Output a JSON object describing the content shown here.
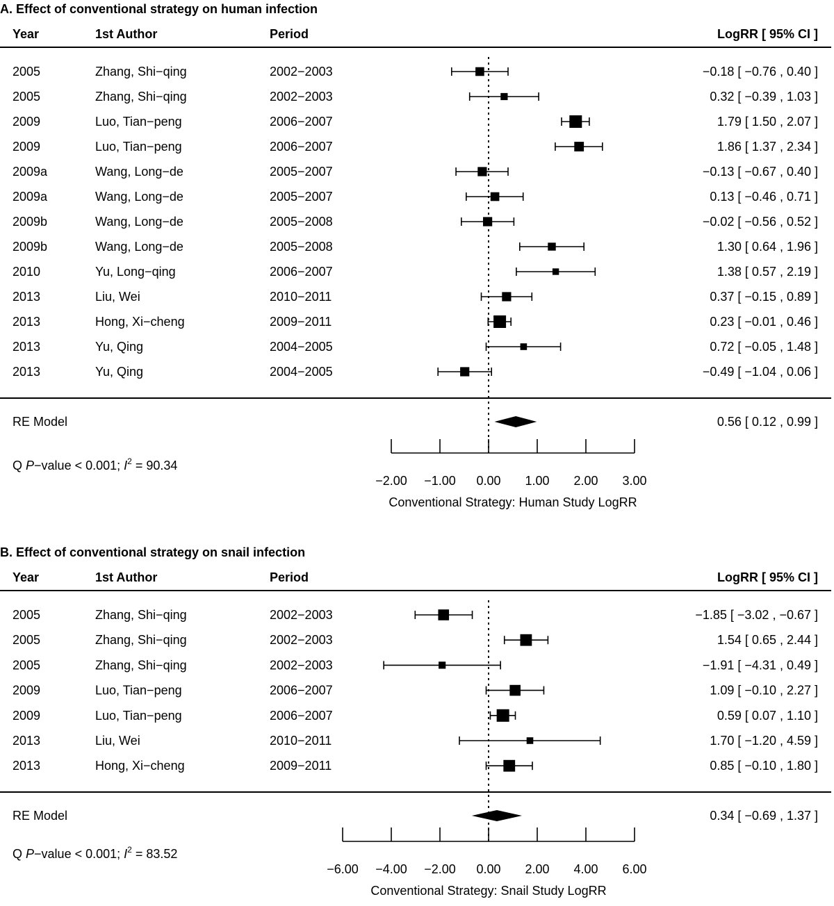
{
  "chart_data": [
    {
      "type": "forest",
      "title": "A. Effect of conventional strategy on human infection",
      "columns": {
        "year": "Year",
        "author": "1st Author",
        "period": "Period",
        "estimate": "LogRR [ 95% CI ]"
      },
      "studies": [
        {
          "year": "2005",
          "author": "Zhang, Shi−qing",
          "period": "2002−2003",
          "est": -0.18,
          "lo": -0.76,
          "hi": 0.4,
          "weight": 0.55,
          "label": "−0.18 [ −0.76 , 0.40 ]"
        },
        {
          "year": "2005",
          "author": "Zhang, Shi−qing",
          "period": "2002−2003",
          "est": 0.32,
          "lo": -0.39,
          "hi": 1.03,
          "weight": 0.35,
          "label": "0.32 [ −0.39 , 1.03 ]"
        },
        {
          "year": "2009",
          "author": "Luo, Tian−peng",
          "period": "2006−2007",
          "est": 1.79,
          "lo": 1.5,
          "hi": 2.07,
          "weight": 1.0,
          "label": "1.79 [  1.50 , 2.07 ]"
        },
        {
          "year": "2009",
          "author": "Luo, Tian−peng",
          "period": "2006−2007",
          "est": 1.86,
          "lo": 1.37,
          "hi": 2.34,
          "weight": 0.65,
          "label": "1.86 [  1.37 , 2.34 ]"
        },
        {
          "year": "2009a",
          "author": "Wang, Long−de",
          "period": "2005−2007",
          "est": -0.13,
          "lo": -0.67,
          "hi": 0.4,
          "weight": 0.6,
          "label": "−0.13 [ −0.67 , 0.40 ]"
        },
        {
          "year": "2009a",
          "author": "Wang, Long−de",
          "period": "2005−2007",
          "est": 0.13,
          "lo": -0.46,
          "hi": 0.71,
          "weight": 0.55,
          "label": "0.13 [ −0.46 , 0.71 ]"
        },
        {
          "year": "2009b",
          "author": "Wang, Long−de",
          "period": "2005−2008",
          "est": -0.02,
          "lo": -0.56,
          "hi": 0.52,
          "weight": 0.6,
          "label": "−0.02 [ −0.56 , 0.52 ]"
        },
        {
          "year": "2009b",
          "author": "Wang, Long−de",
          "period": "2005−2008",
          "est": 1.3,
          "lo": 0.64,
          "hi": 1.96,
          "weight": 0.45,
          "label": "1.30 [  0.64 , 1.96 ]"
        },
        {
          "year": "2010",
          "author": "Yu, Long−qing",
          "period": "2006−2007",
          "est": 1.38,
          "lo": 0.57,
          "hi": 2.19,
          "weight": 0.28,
          "label": "1.38 [  0.57 , 2.19 ]"
        },
        {
          "year": "2013",
          "author": "Liu, Wei",
          "period": "2010−2011",
          "est": 0.37,
          "lo": -0.15,
          "hi": 0.89,
          "weight": 0.6,
          "label": "0.37 [ −0.15 , 0.89 ]"
        },
        {
          "year": "2013",
          "author": "Hong, Xi−cheng",
          "period": "2009−2011",
          "est": 0.23,
          "lo": -0.01,
          "hi": 0.46,
          "weight": 1.0,
          "label": "0.23 [ −0.01 , 0.46 ]"
        },
        {
          "year": "2013",
          "author": "Yu, Qing",
          "period": "2004−2005",
          "est": 0.72,
          "lo": -0.05,
          "hi": 1.48,
          "weight": 0.3,
          "label": "0.72 [ −0.05 , 1.48 ]"
        },
        {
          "year": "2013",
          "author": "Yu, Qing",
          "period": "2004−2005",
          "est": -0.49,
          "lo": -1.04,
          "hi": 0.06,
          "weight": 0.6,
          "label": "−0.49 [ −1.04 , 0.06 ]"
        }
      ],
      "summary": {
        "label": "RE Model",
        "est": 0.56,
        "lo": 0.12,
        "hi": 0.99,
        "text": "0.56 [  0.12 , 0.99 ]"
      },
      "heterogeneity": {
        "prefix": "Q ",
        "p_italic": "P",
        "p_rest": "−value < 0.001;  ",
        "i_italic": "I",
        "i_sup": "2",
        "i_value": " = 90.34"
      },
      "xlim": [
        -2,
        3
      ],
      "ticks": [
        -2,
        -1,
        0,
        1,
        2,
        3
      ],
      "tick_labels": [
        "−2.00",
        "−1.00",
        "0.00",
        "1.00",
        "2.00",
        "3.00"
      ],
      "xlabel": "Conventional Strategy: Human Study LogRR",
      "reference_line": 0
    },
    {
      "type": "forest",
      "title": "B. Effect of conventional strategy on snail infection",
      "columns": {
        "year": "Year",
        "author": "1st Author",
        "period": "Period",
        "estimate": "LogRR [ 95% CI ]"
      },
      "studies": [
        {
          "year": "2005",
          "author": "Zhang, Shi−qing",
          "period": "2002−2003",
          "est": -1.85,
          "lo": -3.02,
          "hi": -0.67,
          "weight": 0.8,
          "label": "−1.85 [ −3.02 , −0.67 ]"
        },
        {
          "year": "2005",
          "author": "Zhang, Shi−qing",
          "period": "2002−2003",
          "est": 1.54,
          "lo": 0.65,
          "hi": 2.44,
          "weight": 0.9,
          "label": "1.54 [  0.65 ,  2.44 ]"
        },
        {
          "year": "2005",
          "author": "Zhang, Shi−qing",
          "period": "2002−2003",
          "est": -1.91,
          "lo": -4.31,
          "hi": 0.49,
          "weight": 0.35,
          "label": "−1.91 [ −4.31 ,  0.49 ]"
        },
        {
          "year": "2009",
          "author": "Luo, Tian−peng",
          "period": "2006−2007",
          "est": 1.09,
          "lo": -0.1,
          "hi": 2.27,
          "weight": 0.8,
          "label": "1.09 [ −0.10 ,  2.27 ]"
        },
        {
          "year": "2009",
          "author": "Luo, Tian−peng",
          "period": "2006−2007",
          "est": 0.59,
          "lo": 0.07,
          "hi": 1.1,
          "weight": 1.0,
          "label": "0.59 [  0.07 ,  1.10 ]"
        },
        {
          "year": "2013",
          "author": "Liu, Wei",
          "period": "2010−2011",
          "est": 1.7,
          "lo": -1.2,
          "hi": 4.59,
          "weight": 0.3,
          "label": "1.70 [ −1.20 ,  4.59 ]"
        },
        {
          "year": "2013",
          "author": "Hong, Xi−cheng",
          "period": "2009−2011",
          "est": 0.85,
          "lo": -0.1,
          "hi": 1.8,
          "weight": 0.9,
          "label": "0.85 [ −0.10 ,  1.80 ]"
        }
      ],
      "summary": {
        "label": "RE Model",
        "est": 0.34,
        "lo": -0.69,
        "hi": 1.37,
        "text": "0.34 [ −0.69 ,  1.37 ]"
      },
      "heterogeneity": {
        "prefix": "Q ",
        "p_italic": "P",
        "p_rest": "−value < 0.001;  ",
        "i_italic": "I",
        "i_sup": "2",
        "i_value": " = 83.52"
      },
      "xlim": [
        -6,
        6
      ],
      "ticks": [
        -6,
        -4,
        -2,
        0,
        2,
        4,
        6
      ],
      "tick_labels": [
        "−6.00",
        "−4.00",
        "−2.00",
        "0.00",
        "2.00",
        "4.00",
        "6.00"
      ],
      "xlabel": "Conventional Strategy: Snail Study LogRR",
      "reference_line": 0
    }
  ]
}
